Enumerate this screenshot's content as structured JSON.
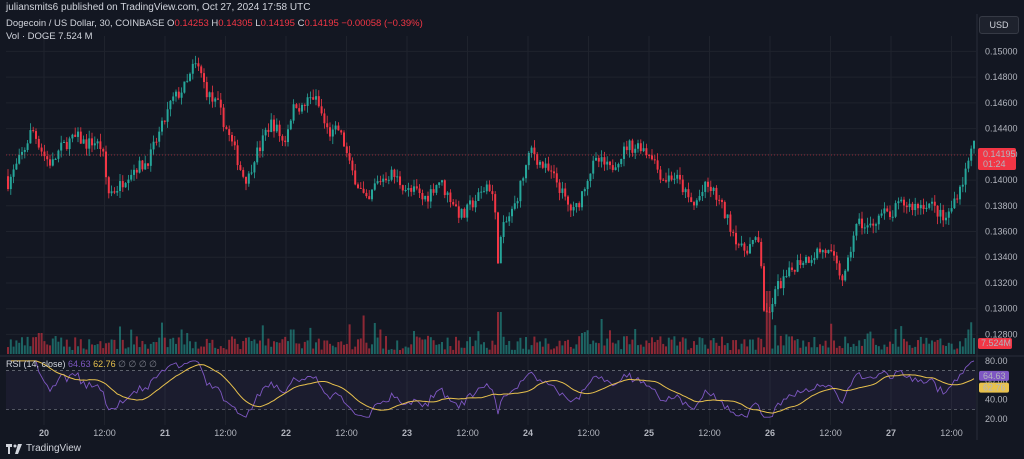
{
  "publisher": "juliansmits6 published on TradingView.com, Oct 27, 2024 17:58 UTC",
  "legend": {
    "symbol": "Dogecoin / US Dollar, 30, COINBASE",
    "o_label": "O",
    "o": "0.14253",
    "h_label": "H",
    "h": "0.14305",
    "l_label": "L",
    "l": "0.14195",
    "c_label": "C",
    "c": "0.14195",
    "change": "−0.00058 (−0.39%)",
    "vol_label": "Vol · DOGE",
    "vol": "7.524 M"
  },
  "rsi_legend": {
    "label": "RSI (14, close)",
    "rsi": "64.63",
    "ma": "62.76",
    "extra": "∅ ∅ ∅ ∅"
  },
  "currency": "USD",
  "footer": "TradingView",
  "colors": {
    "background": "#131722",
    "up": "#26a69a",
    "down": "#f23645",
    "rsi_line": "#7e57c2",
    "rsi_ma": "#e8c14d",
    "grid": "#1f232d"
  },
  "chart_data": {
    "type": "candlestick",
    "price_axis": {
      "ticks": [
        "0.15000",
        "0.14800",
        "0.14600",
        "0.14400",
        "0.14200",
        "0.14000",
        "0.13800",
        "0.13600",
        "0.13400",
        "0.13200",
        "0.13000",
        "0.12800"
      ],
      "ylim": [
        0.1264,
        0.1512
      ],
      "last_price": "0.14195",
      "countdown": "01:24",
      "volume_label": "7.524M"
    },
    "time_axis": {
      "ticks": [
        "20",
        "12:00",
        "21",
        "12:00",
        "22",
        "12:00",
        "23",
        "12:00",
        "24",
        "12:00",
        "25",
        "12:00",
        "26",
        "12:00",
        "27",
        "12:00"
      ]
    },
    "price_path": [
      [
        0,
        0.1418
      ],
      [
        8,
        0.1398
      ],
      [
        16,
        0.141
      ],
      [
        25,
        0.1425
      ],
      [
        32,
        0.144
      ],
      [
        38,
        0.143
      ],
      [
        45,
        0.1418
      ],
      [
        52,
        0.1412
      ],
      [
        60,
        0.1424
      ],
      [
        68,
        0.143
      ],
      [
        78,
        0.1433
      ],
      [
        86,
        0.1428
      ],
      [
        94,
        0.143
      ],
      [
        102,
        0.1425
      ],
      [
        108,
        0.139
      ],
      [
        114,
        0.1392
      ],
      [
        120,
        0.1396
      ],
      [
        128,
        0.1405
      ],
      [
        136,
        0.141
      ],
      [
        144,
        0.1412
      ],
      [
        150,
        0.1418
      ],
      [
        156,
        0.143
      ],
      [
        164,
        0.1445
      ],
      [
        172,
        0.1462
      ],
      [
        180,
        0.1468
      ],
      [
        188,
        0.1476
      ],
      [
        194,
        0.149
      ],
      [
        200,
        0.1485
      ],
      [
        206,
        0.147
      ],
      [
        212,
        0.1462
      ],
      [
        218,
        0.1458
      ],
      [
        224,
        0.1445
      ],
      [
        230,
        0.1432
      ],
      [
        236,
        0.142
      ],
      [
        242,
        0.1405
      ],
      [
        248,
        0.14
      ],
      [
        254,
        0.1418
      ],
      [
        260,
        0.1425
      ],
      [
        266,
        0.1438
      ],
      [
        272,
        0.1445
      ],
      [
        278,
        0.1438
      ],
      [
        284,
        0.1428
      ],
      [
        290,
        0.1448
      ],
      [
        296,
        0.146
      ],
      [
        302,
        0.1455
      ],
      [
        308,
        0.1462
      ],
      [
        314,
        0.1465
      ],
      [
        320,
        0.1455
      ],
      [
        326,
        0.144
      ],
      [
        332,
        0.1435
      ],
      [
        338,
        0.144
      ],
      [
        344,
        0.1428
      ],
      [
        350,
        0.141
      ],
      [
        356,
        0.14
      ],
      [
        362,
        0.139
      ],
      [
        368,
        0.138
      ],
      [
        374,
        0.1395
      ],
      [
        380,
        0.14
      ],
      [
        386,
        0.1403
      ],
      [
        392,
        0.1405
      ],
      [
        398,
        0.14
      ],
      [
        404,
        0.1395
      ],
      [
        410,
        0.139
      ],
      [
        416,
        0.1392
      ],
      [
        422,
        0.1385
      ],
      [
        428,
        0.1388
      ],
      [
        434,
        0.1395
      ],
      [
        440,
        0.14
      ],
      [
        446,
        0.139
      ],
      [
        452,
        0.1385
      ],
      [
        458,
        0.1375
      ],
      [
        464,
        0.1372
      ],
      [
        470,
        0.138
      ],
      [
        476,
        0.1385
      ],
      [
        482,
        0.139
      ],
      [
        488,
        0.1398
      ],
      [
        494,
        0.1385
      ],
      [
        498,
        0.134
      ],
      [
        502,
        0.136
      ],
      [
        508,
        0.137
      ],
      [
        514,
        0.1378
      ],
      [
        520,
        0.1395
      ],
      [
        526,
        0.141
      ],
      [
        532,
        0.1425
      ],
      [
        538,
        0.1415
      ],
      [
        544,
        0.141
      ],
      [
        550,
        0.1405
      ],
      [
        556,
        0.14
      ],
      [
        562,
        0.139
      ],
      [
        568,
        0.138
      ],
      [
        574,
        0.1375
      ],
      [
        580,
        0.1385
      ],
      [
        586,
        0.14
      ],
      [
        592,
        0.141
      ],
      [
        598,
        0.1415
      ],
      [
        604,
        0.1412
      ],
      [
        610,
        0.1408
      ],
      [
        616,
        0.1415
      ],
      [
        622,
        0.142
      ],
      [
        628,
        0.1428
      ],
      [
        634,
        0.1425
      ],
      [
        640,
        0.1428
      ],
      [
        646,
        0.1422
      ],
      [
        652,
        0.142
      ],
      [
        658,
        0.1408
      ],
      [
        664,
        0.14
      ],
      [
        670,
        0.1403
      ],
      [
        676,
        0.1402
      ],
      [
        682,
        0.1395
      ],
      [
        688,
        0.1385
      ],
      [
        694,
        0.138
      ],
      [
        700,
        0.1388
      ],
      [
        706,
        0.1395
      ],
      [
        712,
        0.1392
      ],
      [
        718,
        0.1385
      ],
      [
        724,
        0.1375
      ],
      [
        730,
        0.1365
      ],
      [
        736,
        0.1355
      ],
      [
        742,
        0.1345
      ],
      [
        748,
        0.1348
      ],
      [
        754,
        0.1352
      ],
      [
        760,
        0.135
      ],
      [
        764,
        0.13
      ],
      [
        768,
        0.129
      ],
      [
        772,
        0.1305
      ],
      [
        778,
        0.1318
      ],
      [
        784,
        0.1322
      ],
      [
        790,
        0.1328
      ],
      [
        796,
        0.1335
      ],
      [
        802,
        0.1338
      ],
      [
        810,
        0.134
      ],
      [
        818,
        0.1345
      ],
      [
        826,
        0.1345
      ],
      [
        832,
        0.134
      ],
      [
        838,
        0.133
      ],
      [
        844,
        0.1322
      ],
      [
        848,
        0.1335
      ],
      [
        854,
        0.136
      ],
      [
        860,
        0.1368
      ],
      [
        866,
        0.1362
      ],
      [
        872,
        0.1365
      ],
      [
        878,
        0.1372
      ],
      [
        884,
        0.1375
      ],
      [
        890,
        0.137
      ],
      [
        896,
        0.1378
      ],
      [
        902,
        0.1382
      ],
      [
        910,
        0.138
      ],
      [
        918,
        0.138
      ],
      [
        926,
        0.1382
      ],
      [
        932,
        0.138
      ],
      [
        938,
        0.1375
      ],
      [
        944,
        0.1368
      ],
      [
        950,
        0.1375
      ],
      [
        956,
        0.1388
      ],
      [
        962,
        0.1398
      ],
      [
        968,
        0.1412
      ],
      [
        972,
        0.1432
      ],
      [
        975,
        0.1425
      ],
      [
        977,
        0.14195
      ]
    ],
    "volume_spikes": [
      [
        364,
        0.55
      ],
      [
        500,
        0.6
      ],
      [
        602,
        0.5
      ],
      [
        768,
        0.9
      ],
      [
        968,
        0.35
      ],
      [
        40,
        0.3
      ],
      [
        182,
        0.35
      ],
      [
        292,
        0.35
      ]
    ],
    "rsi": {
      "levels": [
        "80.00",
        "60.00",
        "40.00",
        "20.00"
      ],
      "ylim": [
        14,
        84
      ],
      "band": [
        30,
        70
      ],
      "current": "64.63",
      "ma_current": "62.76"
    }
  }
}
